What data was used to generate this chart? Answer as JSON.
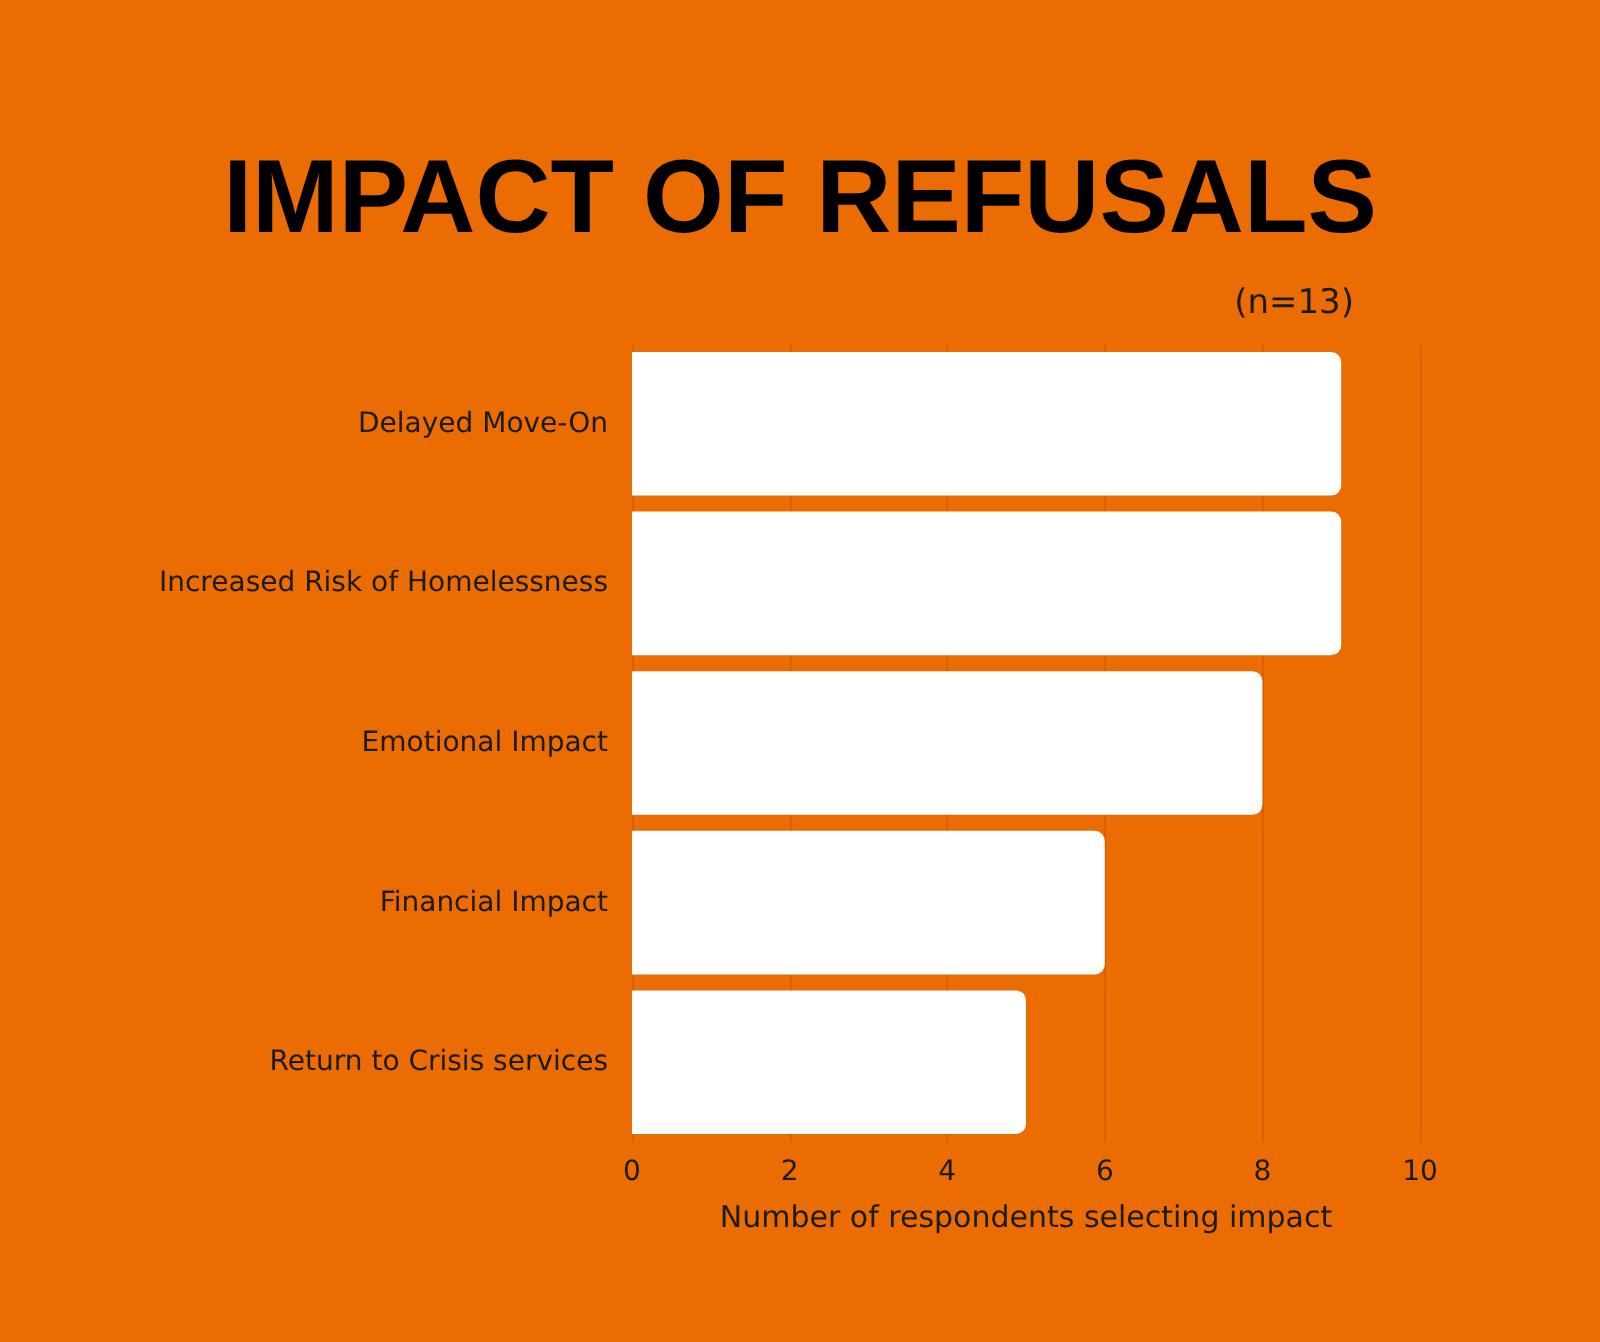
{
  "chart_data": {
    "type": "bar",
    "orientation": "horizontal",
    "title": "IMPACT OF REFUSALS",
    "subtitle": "(n=13)",
    "xlabel": "Number of respondents selecting impact",
    "categories": [
      "Delayed Move-On",
      "Increased Risk of Homelessness",
      "Emotional Impact",
      "Financial Impact",
      "Return to Crisis services"
    ],
    "values": [
      9,
      9,
      8,
      6,
      5
    ],
    "color": "#ffffff",
    "xlim": [
      0,
      10
    ],
    "xticks": [
      0,
      2,
      4,
      6,
      8,
      10
    ],
    "grid": "x"
  }
}
